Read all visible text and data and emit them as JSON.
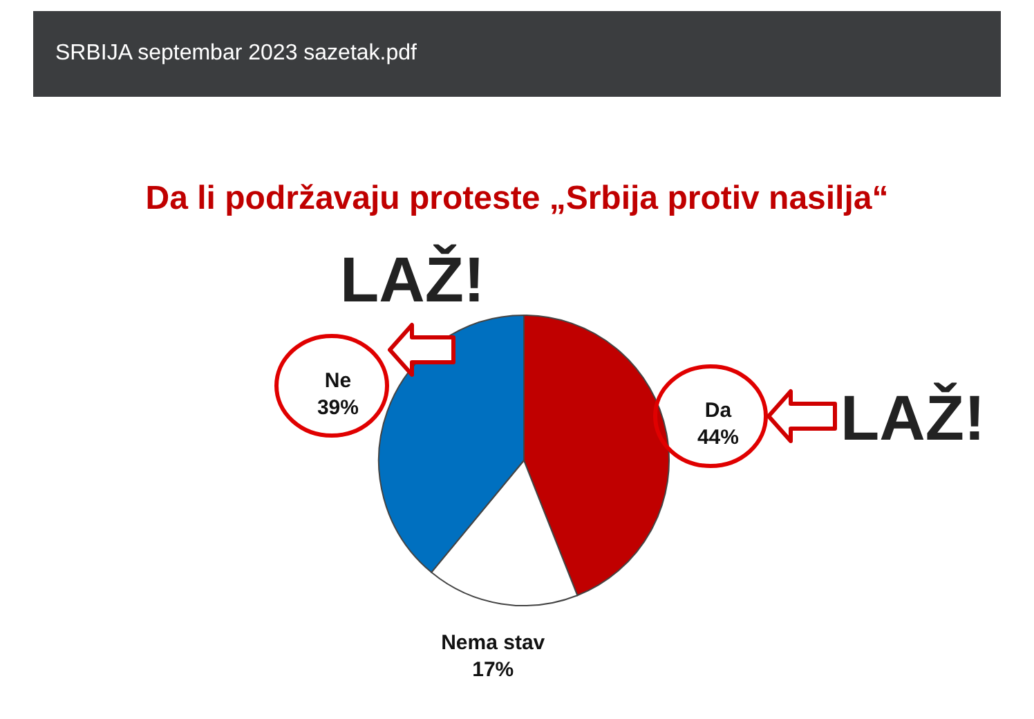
{
  "chart_data": {
    "type": "pie",
    "title": "Da li podržavaju proteste „Srbija protiv nasilja“",
    "categories": [
      "Da",
      "Nema stav",
      "Ne"
    ],
    "values": [
      44,
      17,
      39
    ],
    "value_labels": [
      "44%",
      "17%",
      "39%"
    ],
    "colors": [
      "#c00000",
      "#ffffff",
      "#0070c0"
    ],
    "annotations": [
      "SRBIJA septembar 2023 sazetak.pdf",
      "LAŽ!",
      "LAŽ!"
    ]
  }
}
